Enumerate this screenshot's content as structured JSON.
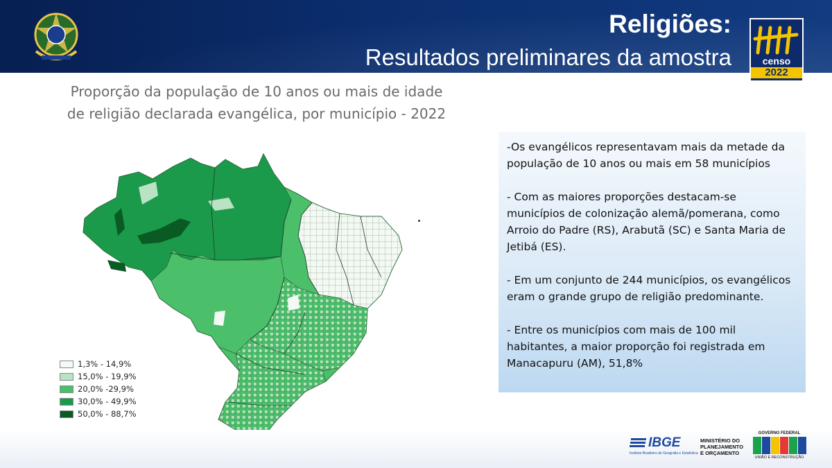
{
  "header": {
    "title": "Religiões:",
    "subtitle": "Resultados preliminares da amostra",
    "censo_word": "censo",
    "censo_year": "2022"
  },
  "map": {
    "title_line1": "Proporção da população de 10 anos ou mais de idade",
    "title_line2": "de religião declarada evangélica, por município - 2022",
    "legend": [
      {
        "label": "1,3% - 14,9%",
        "color": "#f3faf3"
      },
      {
        "label": "15,0% - 19,9%",
        "color": "#b9e3c2"
      },
      {
        "label": "20,0% -29,9%",
        "color": "#4cbf6b"
      },
      {
        "label": "30,0% - 49,9%",
        "color": "#1a9a4a"
      },
      {
        "label": "50,0% - 88,7%",
        "color": "#0a5a23"
      }
    ]
  },
  "notes": [
    "-Os evangélicos representavam mais da metade da população de 10 anos ou mais em 58 municípios",
    "- Com as maiores proporções destacam-se municípios de colonização alemã/pomerana, como Arroio do Padre (RS), Arabutã (SC) e Santa Maria de Jetibá (ES).",
    "- Em um conjunto de 244 municípios, os evangélicos eram o grande grupo de religião predominante.",
    "- Entre os municípios com mais de 100 mil habitantes, a maior proporção foi registrada em Manacapuru (AM), 51,8%"
  ],
  "footer": {
    "ibge": "IBGE",
    "ibge_sub": "Instituto Brasileiro de Geografia e Estatística",
    "ministerio_1": "MINISTÉRIO DO",
    "ministerio_2": "PLANEJAMENTO",
    "ministerio_3": "E ORÇAMENTO",
    "gov_top": "GOVERNO FEDERAL",
    "gov_bottom": "UNIÃO E RECONSTRUÇÃO"
  }
}
